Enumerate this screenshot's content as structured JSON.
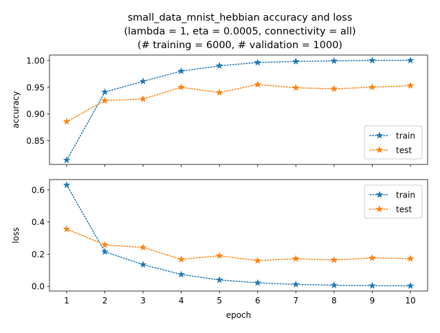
{
  "chart_data": {
    "type": "line",
    "title_lines": [
      "small_data_mnist_hebbian accuracy and loss",
      "(lambda = 1, eta = 0.0005, connectivity = all)",
      "(# training = 6000, # validation = 1000)"
    ],
    "x": [
      1,
      2,
      3,
      4,
      5,
      6,
      7,
      8,
      9,
      10
    ],
    "xlabel": "epoch",
    "xticks": [
      "1",
      "2",
      "3",
      "4",
      "5",
      "6",
      "7",
      "8",
      "9",
      "10"
    ],
    "colors": {
      "train": "#1f77b4",
      "test": "#ff7f0e"
    },
    "subplots": [
      {
        "ylabel": "accuracy",
        "ylim": [
          0.806,
          1.01
        ],
        "yticks": [
          "0.85",
          "0.90",
          "0.95",
          "1.00"
        ],
        "ytick_values": [
          0.85,
          0.9,
          0.95,
          1.0
        ],
        "legend_position": "lower-right",
        "series": [
          {
            "name": "train",
            "values": [
              0.814,
              0.941,
              0.961,
              0.98,
              0.99,
              0.996,
              0.998,
              0.999,
              1.0,
              1.0
            ]
          },
          {
            "name": "test",
            "values": [
              0.886,
              0.925,
              0.928,
              0.95,
              0.94,
              0.955,
              0.949,
              0.947,
              0.95,
              0.953
            ]
          }
        ]
      },
      {
        "ylabel": "loss",
        "ylim": [
          -0.029,
          0.664
        ],
        "yticks": [
          "0.0",
          "0.2",
          "0.4",
          "0.6"
        ],
        "ytick_values": [
          0.0,
          0.2,
          0.4,
          0.6
        ],
        "legend_position": "upper-right",
        "series": [
          {
            "name": "train",
            "values": [
              0.63,
              0.215,
              0.135,
              0.074,
              0.04,
              0.022,
              0.012,
              0.007,
              0.004,
              0.003
            ]
          },
          {
            "name": "test",
            "values": [
              0.356,
              0.258,
              0.242,
              0.168,
              0.19,
              0.16,
              0.172,
              0.164,
              0.177,
              0.172
            ]
          }
        ]
      }
    ]
  }
}
